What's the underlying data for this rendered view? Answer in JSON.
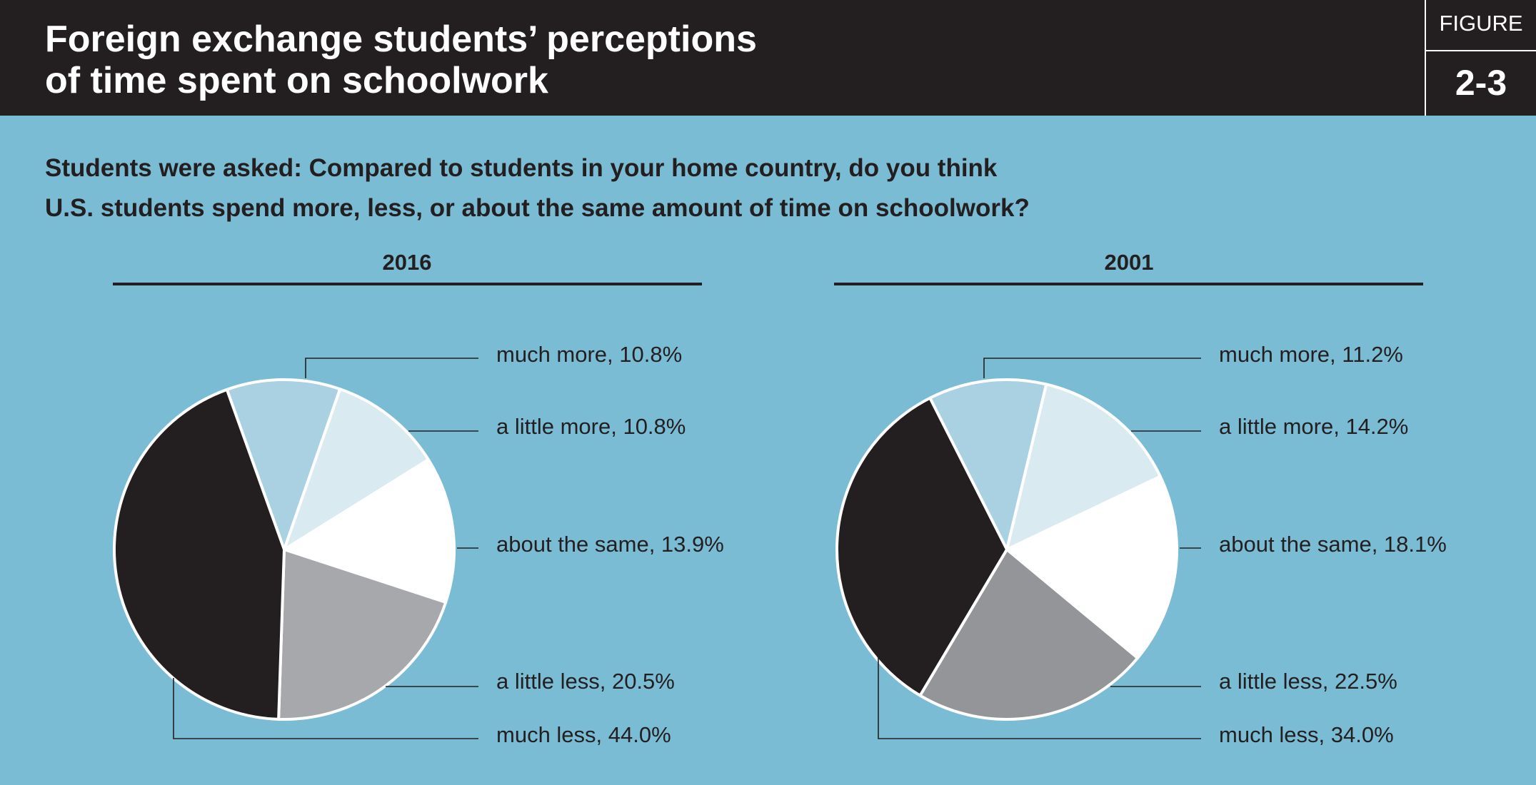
{
  "header": {
    "title_line1": "Foreign exchange students’ perceptions",
    "title_line2": "of time spent on schoolwork",
    "figure_label": "FIGURE",
    "figure_number": "2-3"
  },
  "question": {
    "line1": "Students were asked: Compared to students in your home country, do you think",
    "line2": "U.S. students spend more, less, or about the same amount of time on schoolwork?"
  },
  "chart_data": [
    {
      "type": "pie",
      "title": "2016",
      "slices": [
        {
          "label": "much more",
          "value": 10.8,
          "value_text": "10.8%",
          "color": "#a9d1e1"
        },
        {
          "label": "a little more",
          "value": 10.8,
          "value_text": "10.8%",
          "color": "#d9eaf1"
        },
        {
          "label": "about the same",
          "value": 13.9,
          "value_text": "13.9%",
          "color": "#ffffff"
        },
        {
          "label": "a little less",
          "value": 20.5,
          "value_text": "20.5%",
          "color": "#a7a8ab"
        },
        {
          "label": "much less",
          "value": 44.0,
          "value_text": "44.0%",
          "color": "#231f20"
        }
      ]
    },
    {
      "type": "pie",
      "title": "2001",
      "slices": [
        {
          "label": "much more",
          "value": 11.2,
          "value_text": "11.2%",
          "color": "#a9d1e1"
        },
        {
          "label": "a little more",
          "value": 14.2,
          "value_text": "14.2%",
          "color": "#d9eaf1"
        },
        {
          "label": "about the same",
          "value": 18.1,
          "value_text": "18.1%",
          "color": "#ffffff"
        },
        {
          "label": "a little less",
          "value": 22.5,
          "value_text": "22.5%",
          "color": "#939598"
        },
        {
          "label": "much less",
          "value": 34.0,
          "value_text": "34.0%",
          "color": "#231f20"
        }
      ]
    }
  ]
}
